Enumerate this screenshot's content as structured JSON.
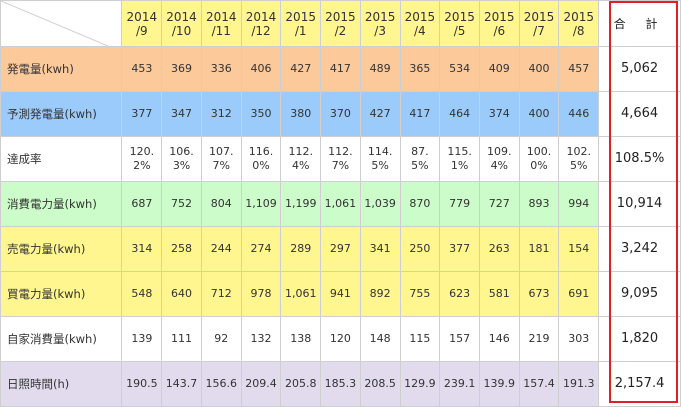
{
  "header": {
    "months": [
      "2014\n/9",
      "2014\n/10",
      "2014\n/11",
      "2014\n/12",
      "2015\n/1",
      "2015\n/2",
      "2015\n/3",
      "2015\n/4",
      "2015\n/5",
      "2015\n/6",
      "2015\n/7",
      "2015\n/8"
    ],
    "total_label": "合 計"
  },
  "rows": [
    {
      "label": "発電量(kwh)",
      "bg": "#fcc99b",
      "values": [
        "453",
        "369",
        "336",
        "406",
        "427",
        "417",
        "489",
        "365",
        "534",
        "409",
        "400",
        "457"
      ],
      "total": "5,062"
    },
    {
      "label": "予測発電量(kwh)",
      "bg": "#9bcbfb",
      "values": [
        "377",
        "347",
        "312",
        "350",
        "380",
        "370",
        "427",
        "417",
        "464",
        "374",
        "400",
        "446"
      ],
      "total": "4,664"
    },
    {
      "label": "達成率",
      "bg": "#ffffff",
      "values": [
        "120.\n2%",
        "106.\n3%",
        "107.\n7%",
        "116.\n0%",
        "112.\n4%",
        "112.\n7%",
        "114.\n5%",
        "87.\n5%",
        "115.\n1%",
        "109.\n4%",
        "100.\n0%",
        "102.\n5%"
      ],
      "total": "108.5%"
    },
    {
      "label": "消費電力量(kwh)",
      "bg": "#ccfcc9",
      "values": [
        "687",
        "752",
        "804",
        "1,109",
        "1,199",
        "1,061",
        "1,039",
        "870",
        "779",
        "727",
        "893",
        "994"
      ],
      "total": "10,914"
    },
    {
      "label": "売電力量(kwh)",
      "bg": "#fff68f",
      "values": [
        "314",
        "258",
        "244",
        "274",
        "289",
        "297",
        "341",
        "250",
        "377",
        "263",
        "181",
        "154"
      ],
      "total": "3,242"
    },
    {
      "label": "買電力量(kwh)",
      "bg": "#fff68f",
      "values": [
        "548",
        "640",
        "712",
        "978",
        "1,061",
        "941",
        "892",
        "755",
        "623",
        "581",
        "673",
        "691"
      ],
      "total": "9,095"
    },
    {
      "label": "自家消費量(kwh)",
      "bg": "#ffffff",
      "values": [
        "139",
        "111",
        "92",
        "132",
        "138",
        "120",
        "148",
        "115",
        "157",
        "146",
        "219",
        "303"
      ],
      "total": "1,820"
    },
    {
      "label": "日照時間(h)",
      "bg": "#e2dbee",
      "values": [
        "190.5",
        "143.7",
        "156.6",
        "209.4",
        "205.8",
        "185.3",
        "208.5",
        "129.9",
        "239.1",
        "139.9",
        "157.4",
        "191.3"
      ],
      "total": "2,157.4"
    }
  ]
}
